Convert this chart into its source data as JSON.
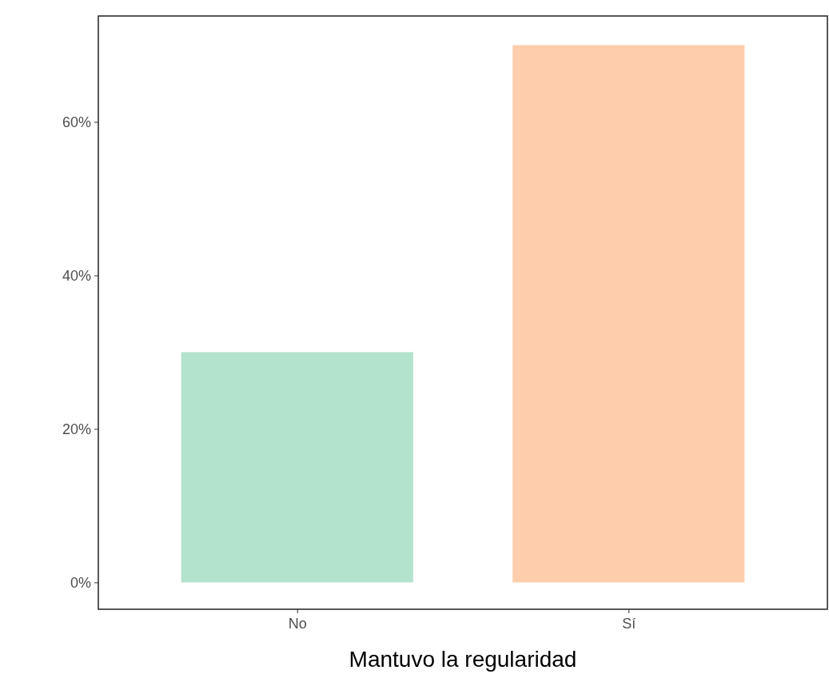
{
  "chart_data": {
    "type": "bar",
    "xlabel": "Mantuvo la regularidad",
    "categories": [
      "No",
      "Sí"
    ],
    "values": [
      30,
      70
    ],
    "colors": [
      "#b3e2cd",
      "#fdcdac"
    ],
    "ylim": [
      -3.5,
      73.8
    ],
    "yticks": [
      {
        "value": 0,
        "label": "0%"
      },
      {
        "value": 20,
        "label": "20%"
      },
      {
        "value": 40,
        "label": "40%"
      },
      {
        "value": 60,
        "label": "60%"
      }
    ],
    "grid": false
  }
}
